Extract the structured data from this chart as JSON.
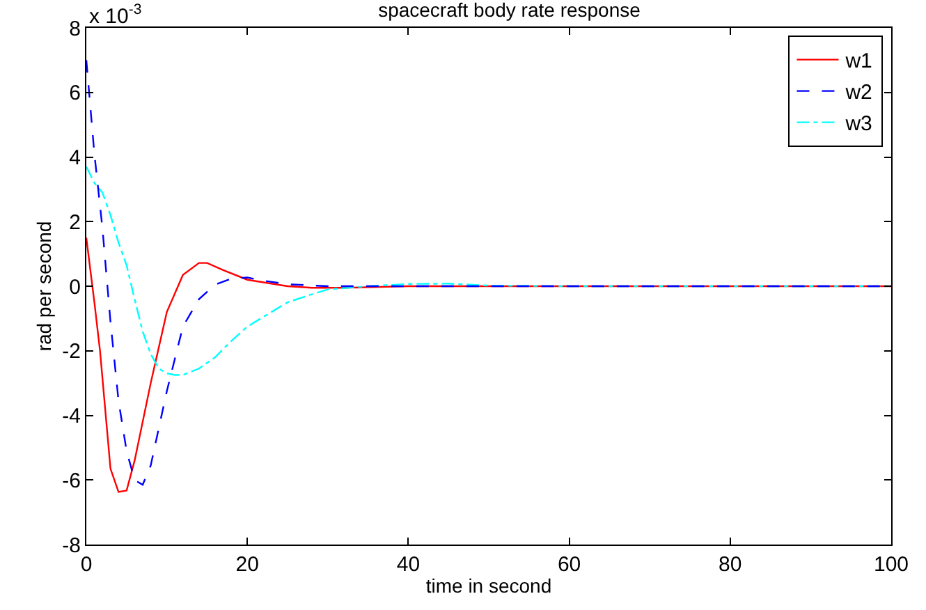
{
  "chart_data": {
    "type": "line",
    "title": "spacecraft body rate response",
    "xlabel": "time in second",
    "ylabel": "rad per second",
    "annotations": [
      "x 10$^{-3}$"
    ],
    "xlim": [
      0,
      100
    ],
    "xticks": [
      0,
      20,
      40,
      60,
      80,
      100
    ],
    "ylim": [
      -8,
      8
    ],
    "yticks": [
      -8,
      -6,
      -4,
      -2,
      0,
      2,
      4,
      6,
      8
    ],
    "legend": "top right",
    "marker": "none",
    "series": [
      {
        "name": "w1",
        "color": "#ff0000",
        "line_style": "solid",
        "x": [
          0,
          1,
          1.7,
          3,
          4,
          5,
          6,
          8,
          10,
          12,
          14,
          15,
          17,
          20,
          25,
          28,
          32,
          40,
          60,
          80,
          100
        ],
        "values": [
          1.5,
          -0.5,
          -2,
          -5.65,
          -6.37,
          -6.33,
          -5.4,
          -3,
          -0.8,
          0.35,
          0.72,
          0.72,
          0.5,
          0.2,
          0,
          -0.05,
          -0.05,
          0,
          0,
          0,
          0
        ]
      },
      {
        "name": "w2",
        "color": "#0000ff",
        "line_style": "dashed",
        "x": [
          0,
          1,
          2,
          3,
          4,
          5,
          6,
          7,
          8,
          10,
          12,
          14,
          16,
          18,
          20,
          22,
          25,
          30,
          40,
          60,
          80,
          100
        ],
        "values": [
          7,
          4.1,
          1.8,
          -1.1,
          -3.55,
          -5.1,
          -6,
          -6.15,
          -5.55,
          -3.25,
          -1.25,
          -0.4,
          0.05,
          0.23,
          0.27,
          0.17,
          0.06,
          0,
          0,
          0,
          0,
          0
        ]
      },
      {
        "name": "w3",
        "color": "#00ffff",
        "line_style": "dashdot",
        "x": [
          0,
          1,
          2,
          3,
          4,
          5,
          6,
          7,
          8,
          9,
          10,
          11,
          12,
          14,
          16,
          18,
          20,
          22,
          25,
          28,
          30,
          35,
          40,
          45,
          50,
          60,
          80,
          100
        ],
        "values": [
          3.7,
          3.2,
          2.9,
          2.2,
          1.35,
          0.65,
          -0.4,
          -1.4,
          -2.1,
          -2.55,
          -2.7,
          -2.75,
          -2.75,
          -2.55,
          -2.2,
          -1.7,
          -1.25,
          -0.95,
          -0.5,
          -0.25,
          -0.1,
          0,
          0.07,
          0.08,
          0.02,
          0,
          0,
          0
        ]
      }
    ]
  }
}
